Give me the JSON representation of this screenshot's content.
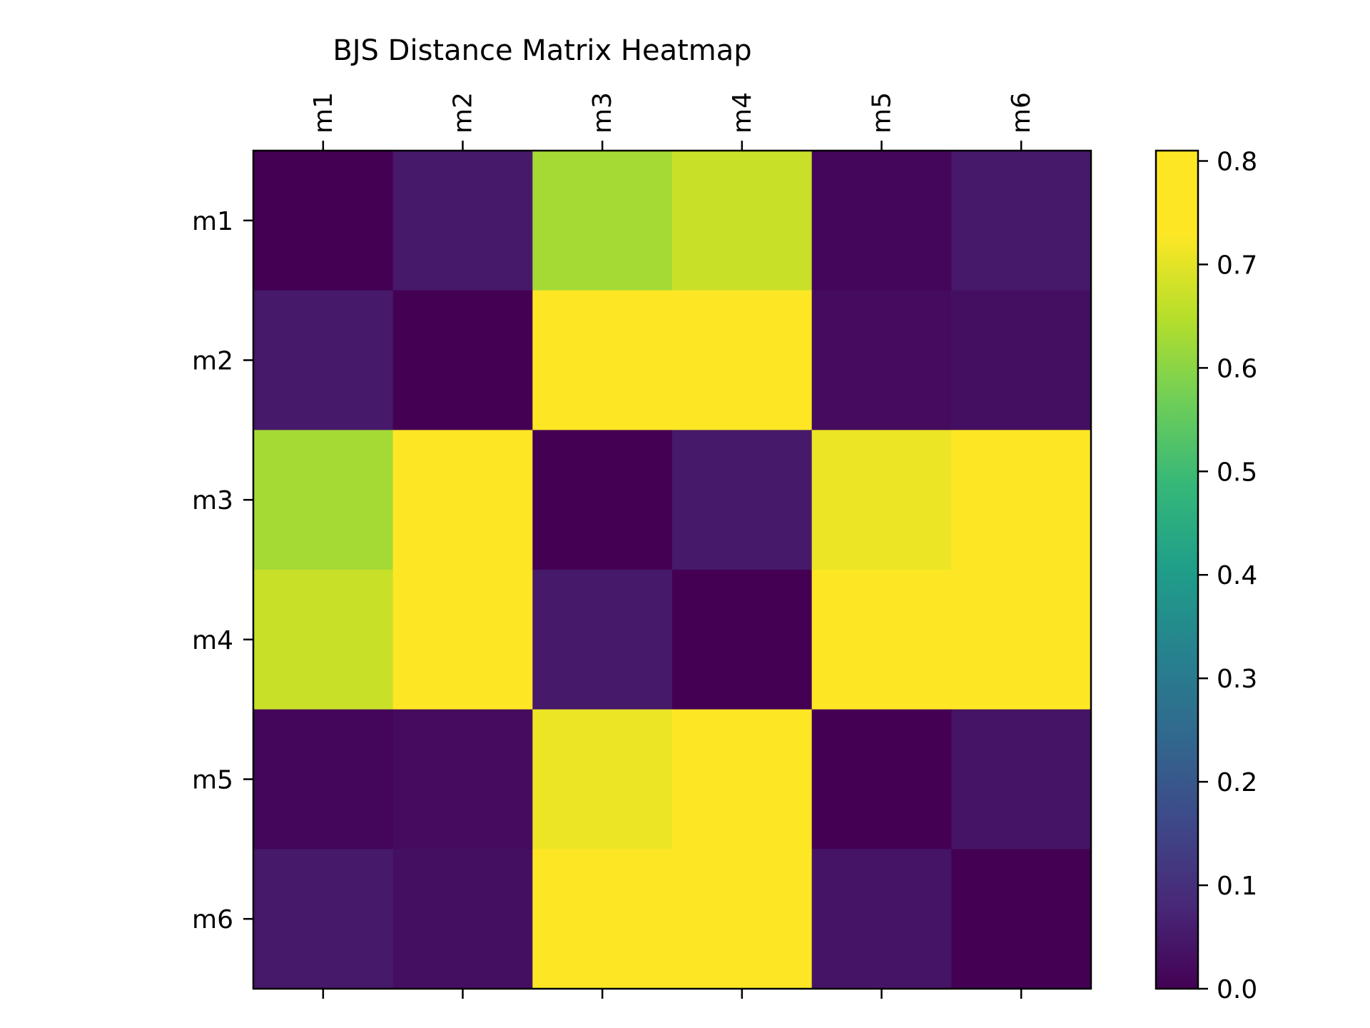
{
  "chart_data": {
    "type": "heatmap",
    "title": "BJS Distance Matrix Heatmap",
    "xlabel": "",
    "ylabel": "",
    "x_categories": [
      "m1",
      "m2",
      "m3",
      "m4",
      "m5",
      "m6"
    ],
    "y_categories": [
      "m1",
      "m2",
      "m3",
      "m4",
      "m5",
      "m6"
    ],
    "values": [
      [
        0.0,
        0.05,
        0.63,
        0.67,
        0.01,
        0.05
      ],
      [
        0.05,
        0.0,
        0.78,
        0.8,
        0.02,
        0.03
      ],
      [
        0.63,
        0.78,
        0.0,
        0.05,
        0.71,
        0.77
      ],
      [
        0.67,
        0.8,
        0.05,
        0.0,
        0.74,
        0.76
      ],
      [
        0.01,
        0.02,
        0.71,
        0.74,
        0.0,
        0.04
      ],
      [
        0.05,
        0.03,
        0.77,
        0.76,
        0.04,
        0.0
      ]
    ],
    "colormap": "viridis",
    "vmin": 0.0,
    "vmax": 0.81,
    "colorbar_ticks": [
      "0.0",
      "0.1",
      "0.2",
      "0.3",
      "0.4",
      "0.5",
      "0.6",
      "0.7",
      "0.8"
    ],
    "x_tick_position": "top",
    "legend": "colorbar-right",
    "grid": false
  }
}
